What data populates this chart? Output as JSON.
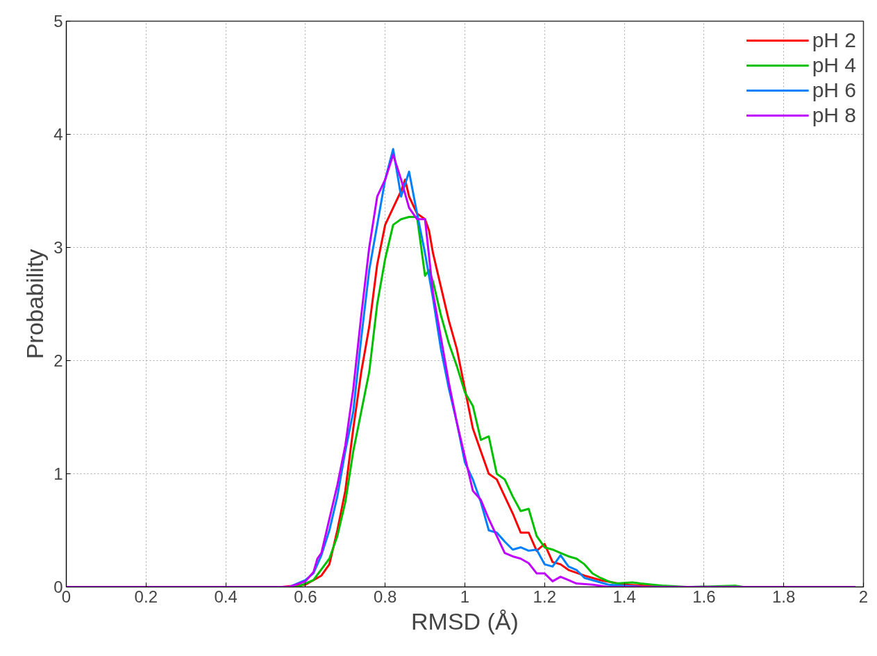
{
  "chart_data": {
    "type": "line",
    "xlabel": "RMSD (Å)",
    "ylabel": "Probability",
    "xlim": [
      0,
      2
    ],
    "ylim": [
      0,
      5
    ],
    "xticks": [
      0,
      0.2,
      0.4,
      0.6,
      0.8,
      1,
      1.2,
      1.4,
      1.6,
      1.8,
      2
    ],
    "yticks": [
      0,
      1,
      2,
      3,
      4,
      5
    ],
    "grid": true,
    "legend": "top right",
    "line_style": "solid",
    "series": [
      {
        "name": "pH 2",
        "color": "#ff0000",
        "x": [
          0,
          0.54,
          0.6,
          0.64,
          0.66,
          0.68,
          0.7,
          0.72,
          0.74,
          0.76,
          0.78,
          0.8,
          0.82,
          0.84,
          0.85,
          0.86,
          0.88,
          0.9,
          0.91,
          0.92,
          0.94,
          0.96,
          0.98,
          1.0,
          1.02,
          1.04,
          1.06,
          1.08,
          1.1,
          1.12,
          1.14,
          1.16,
          1.18,
          1.2,
          1.22,
          1.24,
          1.26,
          1.3,
          1.34,
          1.4,
          1.45,
          1.5,
          1.98
        ],
        "values": [
          0,
          0,
          0.02,
          0.1,
          0.2,
          0.5,
          0.85,
          1.4,
          1.9,
          2.3,
          2.85,
          3.2,
          3.35,
          3.5,
          3.6,
          3.45,
          3.3,
          3.25,
          3.15,
          2.95,
          2.65,
          2.35,
          2.1,
          1.75,
          1.4,
          1.2,
          1.0,
          0.95,
          0.8,
          0.65,
          0.48,
          0.48,
          0.32,
          0.38,
          0.22,
          0.2,
          0.15,
          0.1,
          0.06,
          0.02,
          0.01,
          0,
          0
        ]
      },
      {
        "name": "pH 4",
        "color": "#00c000",
        "x": [
          0,
          0.58,
          0.62,
          0.66,
          0.68,
          0.7,
          0.72,
          0.74,
          0.76,
          0.78,
          0.8,
          0.82,
          0.84,
          0.86,
          0.88,
          0.9,
          0.91,
          0.92,
          0.94,
          0.96,
          0.98,
          1.0,
          1.02,
          1.04,
          1.06,
          1.08,
          1.1,
          1.12,
          1.14,
          1.16,
          1.18,
          1.2,
          1.22,
          1.24,
          1.26,
          1.28,
          1.3,
          1.32,
          1.34,
          1.36,
          1.38,
          1.42,
          1.44,
          1.5,
          1.56,
          1.68,
          1.7,
          1.98
        ],
        "values": [
          0,
          0,
          0.06,
          0.25,
          0.45,
          0.75,
          1.2,
          1.55,
          1.9,
          2.5,
          2.9,
          3.2,
          3.25,
          3.27,
          3.27,
          2.75,
          2.8,
          2.7,
          2.4,
          2.15,
          1.95,
          1.72,
          1.6,
          1.3,
          1.33,
          1.0,
          0.95,
          0.8,
          0.67,
          0.69,
          0.45,
          0.35,
          0.33,
          0.3,
          0.27,
          0.25,
          0.2,
          0.12,
          0.08,
          0.05,
          0.03,
          0.04,
          0.03,
          0.01,
          0,
          0.01,
          0,
          0
        ]
      },
      {
        "name": "pH 6",
        "color": "#0080ff",
        "x": [
          0,
          0.56,
          0.6,
          0.62,
          0.64,
          0.66,
          0.68,
          0.7,
          0.72,
          0.74,
          0.76,
          0.78,
          0.8,
          0.82,
          0.84,
          0.86,
          0.88,
          0.9,
          0.92,
          0.94,
          0.96,
          0.98,
          1.0,
          1.02,
          1.04,
          1.06,
          1.08,
          1.1,
          1.12,
          1.14,
          1.16,
          1.18,
          1.2,
          1.22,
          1.24,
          1.26,
          1.28,
          1.3,
          1.32,
          1.36,
          1.4,
          1.45,
          1.98
        ],
        "values": [
          0,
          0,
          0.06,
          0.12,
          0.28,
          0.5,
          0.8,
          1.2,
          1.55,
          2.2,
          2.8,
          3.2,
          3.6,
          3.87,
          3.45,
          3.67,
          3.3,
          2.95,
          2.55,
          2.1,
          1.75,
          1.45,
          1.1,
          0.95,
          0.75,
          0.5,
          0.48,
          0.4,
          0.33,
          0.35,
          0.32,
          0.33,
          0.2,
          0.18,
          0.28,
          0.18,
          0.15,
          0.08,
          0.06,
          0.02,
          0.01,
          0,
          0
        ]
      },
      {
        "name": "pH 8",
        "color": "#c000ff",
        "x": [
          0,
          0.56,
          0.6,
          0.62,
          0.63,
          0.64,
          0.66,
          0.68,
          0.7,
          0.72,
          0.74,
          0.76,
          0.78,
          0.8,
          0.82,
          0.84,
          0.86,
          0.88,
          0.9,
          0.92,
          0.94,
          0.96,
          0.98,
          1.0,
          1.02,
          1.04,
          1.06,
          1.08,
          1.1,
          1.12,
          1.14,
          1.16,
          1.18,
          1.2,
          1.22,
          1.24,
          1.26,
          1.28,
          1.32,
          1.36,
          1.98
        ],
        "values": [
          0,
          0,
          0.05,
          0.13,
          0.25,
          0.3,
          0.6,
          0.9,
          1.25,
          1.75,
          2.4,
          3.0,
          3.45,
          3.6,
          3.82,
          3.6,
          3.35,
          3.25,
          3.25,
          2.6,
          2.2,
          1.8,
          1.45,
          1.15,
          0.85,
          0.77,
          0.6,
          0.45,
          0.3,
          0.27,
          0.25,
          0.21,
          0.12,
          0.12,
          0.05,
          0.09,
          0.06,
          0.03,
          0.02,
          0,
          0
        ]
      }
    ]
  }
}
